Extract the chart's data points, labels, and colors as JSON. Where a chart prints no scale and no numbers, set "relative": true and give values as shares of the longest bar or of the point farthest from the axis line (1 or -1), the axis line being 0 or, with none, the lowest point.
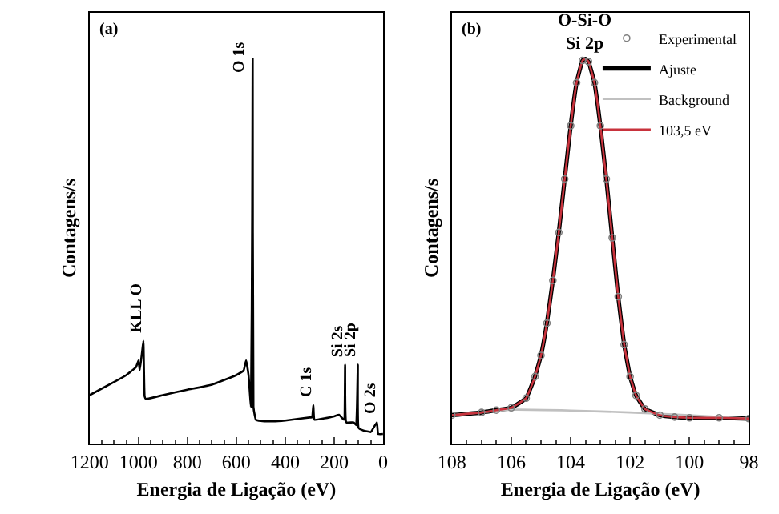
{
  "chart_data": [
    {
      "type": "line",
      "relative": true,
      "xlabel": "Energia de Ligação (eV)",
      "ylabel": "Contagens/s",
      "xlim": [
        1200,
        0
      ],
      "xticks": [
        1200,
        1000,
        800,
        600,
        400,
        200,
        0
      ],
      "legend": false,
      "annotations": [
        "(a)",
        {
          "text": "KLL O",
          "x": 980,
          "y": 0.267
        },
        {
          "text": "O 1s",
          "x": 533,
          "y": 1
        },
        {
          "text": "C 1s",
          "x": 285,
          "y": 0.1
        },
        {
          "text": "Si 2s",
          "x": 155,
          "y": 0.205
        },
        {
          "text": "Si 2p",
          "x": 103,
          "y": 0.205
        },
        {
          "text": "O 2s",
          "x": 25,
          "y": 0.055
        }
      ],
      "series": [
        {
          "color": "#000000",
          "x": [
            1200,
            1100,
            1050,
            1010,
            1000,
            995,
            985,
            980,
            975,
            970,
            900,
            800,
            700,
            600,
            570,
            560,
            550,
            540,
            535,
            533,
            530,
            525,
            520,
            500,
            450,
            400,
            300,
            290,
            285,
            280,
            200,
            180,
            160,
            155,
            150,
            120,
            110,
            103,
            100,
            80,
            50,
            25,
            20,
            0
          ],
          "values": [
            0.126,
            0.16,
            0.178,
            0.199,
            0.216,
            0.19,
            0.24,
            0.267,
            0.123,
            0.116,
            0.126,
            0.14,
            0.153,
            0.178,
            0.19,
            0.216,
            0.178,
            0.096,
            0.6,
            1,
            0.096,
            0.075,
            0.062,
            0.059,
            0.058,
            0.06,
            0.068,
            0.068,
            0.1,
            0.062,
            0.071,
            0.075,
            0.062,
            0.205,
            0.055,
            0.055,
            0.048,
            0.205,
            0.041,
            0.034,
            0.03,
            0.055,
            0.025,
            0.025
          ]
        }
      ]
    },
    {
      "type": "line",
      "relative": true,
      "xlabel": "Energia de Ligação (eV)",
      "ylabel": "Contagens/s",
      "xlim": [
        108,
        98
      ],
      "xticks": [
        108,
        106,
        104,
        102,
        100,
        98
      ],
      "legend": "top right",
      "annotations": [
        "(b)",
        {
          "text": "O-Si-O\nSi 2p",
          "x": 103.5,
          "y": 1
        }
      ],
      "series": [
        {
          "name": "Experimental",
          "type": "scatter",
          "marker": "circle",
          "color": "#808080",
          "x": [
            108,
            107,
            106.5,
            106,
            105.5,
            105.2,
            105,
            104.8,
            104.6,
            104.4,
            104.2,
            104,
            103.8,
            103.6,
            103.4,
            103.2,
            103,
            102.8,
            102.6,
            102.4,
            102.2,
            102,
            101.8,
            101.5,
            101,
            100.5,
            100,
            99,
            98
          ],
          "values": [
            0.074,
            0.081,
            0.087,
            0.093,
            0.118,
            0.174,
            0.229,
            0.313,
            0.424,
            0.549,
            0.688,
            0.826,
            0.938,
            0.996,
            0.993,
            0.938,
            0.826,
            0.688,
            0.535,
            0.382,
            0.257,
            0.174,
            0.125,
            0.09,
            0.074,
            0.069,
            0.067,
            0.067,
            0.065
          ]
        },
        {
          "name": "Ajuste",
          "color": "#000000",
          "x": [
            108,
            107,
            106.5,
            106,
            105.5,
            105.2,
            105,
            104.8,
            104.6,
            104.4,
            104.2,
            104,
            103.8,
            103.6,
            103.5,
            103.4,
            103.2,
            103,
            102.8,
            102.6,
            102.4,
            102.2,
            102,
            101.8,
            101.5,
            101,
            100.5,
            100,
            99,
            98
          ],
          "values": [
            0.074,
            0.081,
            0.087,
            0.093,
            0.118,
            0.174,
            0.229,
            0.313,
            0.424,
            0.549,
            0.688,
            0.826,
            0.938,
            0.996,
            1,
            0.993,
            0.938,
            0.826,
            0.688,
            0.535,
            0.382,
            0.257,
            0.174,
            0.125,
            0.09,
            0.074,
            0.069,
            0.067,
            0.067,
            0.065
          ]
        },
        {
          "name": "Background",
          "color": "#c0c0c0",
          "x": [
            108,
            106,
            104,
            102,
            100,
            98
          ],
          "values": [
            0.074,
            0.088,
            0.086,
            0.081,
            0.074,
            0.065
          ]
        },
        {
          "name": "103,5 eV",
          "color": "#c8323c",
          "x": [
            108,
            107,
            106.5,
            106,
            105.5,
            105.2,
            105,
            104.8,
            104.6,
            104.4,
            104.2,
            104,
            103.8,
            103.6,
            103.5,
            103.4,
            103.2,
            103,
            102.8,
            102.6,
            102.4,
            102.2,
            102,
            101.8,
            101.5,
            101,
            100.5,
            100,
            99,
            98
          ],
          "values": [
            0.074,
            0.081,
            0.087,
            0.093,
            0.118,
            0.174,
            0.229,
            0.313,
            0.424,
            0.549,
            0.688,
            0.826,
            0.938,
            0.996,
            1,
            0.993,
            0.938,
            0.826,
            0.688,
            0.535,
            0.382,
            0.257,
            0.174,
            0.125,
            0.09,
            0.074,
            0.069,
            0.067,
            0.067,
            0.065
          ]
        }
      ]
    }
  ]
}
